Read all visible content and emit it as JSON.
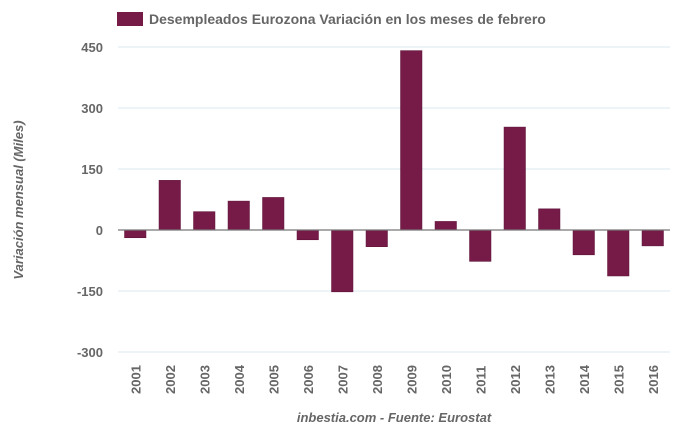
{
  "chart_data": {
    "type": "bar",
    "title": "",
    "legend": {
      "entries": [
        "Desempleados Eurozona Variación en los meses de febrero"
      ],
      "placement": "top"
    },
    "categories": [
      "2001",
      "2002",
      "2003",
      "2004",
      "2005",
      "2006",
      "2007",
      "2008",
      "2009",
      "2010",
      "2011",
      "2012",
      "2013",
      "2014",
      "2015",
      "2016"
    ],
    "series": [
      {
        "name": "Desempleados Eurozona Variación en los meses de febrero",
        "color": "#761a48",
        "values": [
          -19,
          122,
          45,
          71,
          80,
          -24,
          -152,
          -41,
          441,
          21,
          -77,
          253,
          52,
          -61,
          -113,
          -39
        ]
      }
    ],
    "xlabel": "inbestia.com - Fuente: Eurostat",
    "ylabel": "Variación mensual (Miles)",
    "ylim": [
      -300,
      450
    ],
    "yticks": [
      450,
      300,
      150,
      0,
      -150,
      -300
    ],
    "ytick_labels": [
      "450",
      "300",
      "150",
      "0",
      "-150",
      "-300"
    ],
    "grid": true
  }
}
